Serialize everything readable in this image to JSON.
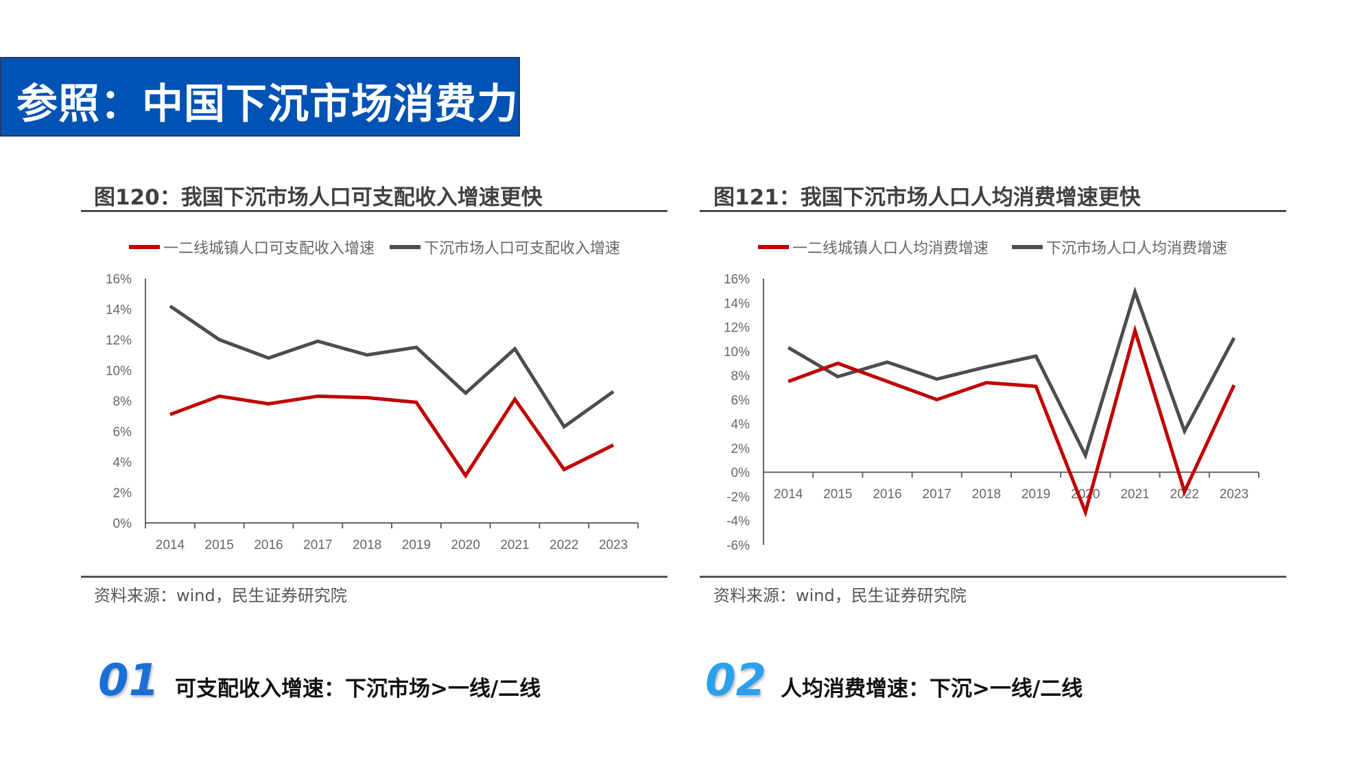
{
  "page_title": "参照：中国下沉市场消费力",
  "colors": {
    "banner": "#0052b4",
    "series_red": "#c00000",
    "series_gray": "#4d4d4d",
    "num1": "#1a6fd6",
    "num2": "#2aa0ef"
  },
  "chart_data": [
    {
      "type": "line",
      "title": "图120：我国下沉市场人口可支配收入增速更快",
      "categories": [
        "2014",
        "2015",
        "2016",
        "2017",
        "2018",
        "2019",
        "2020",
        "2021",
        "2022",
        "2023"
      ],
      "y_ticks": [
        "0%",
        "2%",
        "4%",
        "6%",
        "8%",
        "10%",
        "12%",
        "14%",
        "16%"
      ],
      "ylim": [
        0,
        16
      ],
      "y_unit": "%",
      "legend_position": "top",
      "grid": false,
      "series": [
        {
          "name": "一二线城镇人口可支配收入增速",
          "color": "#c00000",
          "values": [
            7.1,
            8.3,
            7.8,
            8.3,
            8.2,
            7.9,
            3.1,
            8.1,
            3.5,
            5.1
          ]
        },
        {
          "name": "下沉市场人口可支配收入增速",
          "color": "#4d4d4d",
          "values": [
            14.2,
            12.0,
            10.8,
            11.9,
            11.0,
            11.5,
            8.5,
            11.4,
            6.3,
            8.6
          ]
        }
      ],
      "source": "资料来源：wind，民生证券研究院"
    },
    {
      "type": "line",
      "title": "图121：我国下沉市场人口人均消费增速更快",
      "categories": [
        "2014",
        "2015",
        "2016",
        "2017",
        "2018",
        "2019",
        "2020",
        "2021",
        "2022",
        "2023"
      ],
      "y_ticks": [
        "-6%",
        "-4%",
        "-2%",
        "0%",
        "2%",
        "4%",
        "6%",
        "8%",
        "10%",
        "12%",
        "14%",
        "16%"
      ],
      "ylim": [
        -6,
        16
      ],
      "y_unit": "%",
      "legend_position": "top",
      "grid": false,
      "series": [
        {
          "name": "一二线城镇人口人均消费增速",
          "color": "#c00000",
          "values": [
            7.5,
            9.0,
            7.5,
            6.0,
            7.4,
            7.1,
            -3.3,
            11.7,
            -1.6,
            7.2
          ]
        },
        {
          "name": "下沉市场人口人均消费增速",
          "color": "#4d4d4d",
          "values": [
            10.3,
            7.9,
            9.1,
            7.7,
            8.7,
            9.6,
            1.4,
            14.9,
            3.4,
            11.1
          ]
        }
      ],
      "source": "资料来源：wind，民生证券研究院"
    }
  ],
  "points": [
    {
      "num": "01",
      "text": "可支配收入增速：下沉市场>一线/二线"
    },
    {
      "num": "02",
      "text": "人均消费增速：下沉>一线/二线"
    }
  ]
}
